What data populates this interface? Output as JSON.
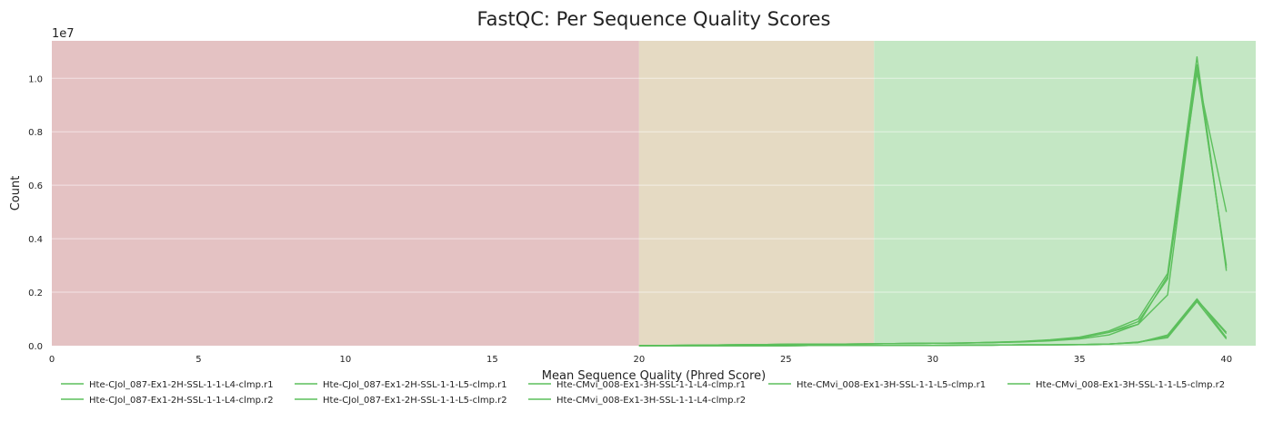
{
  "chart_data": {
    "type": "line",
    "title": "FastQC: Per Sequence Quality Scores",
    "xlabel": "Mean Sequence Quality (Phred Score)",
    "ylabel": "Count",
    "y_offset_label": "1e7",
    "xlim": [
      0,
      41
    ],
    "ylim": [
      0,
      1.14
    ],
    "x_ticks": [
      0,
      5,
      10,
      15,
      20,
      25,
      30,
      35,
      40
    ],
    "y_ticks": [
      0.0,
      0.2,
      0.4,
      0.6,
      0.8,
      1.0
    ],
    "y_tick_labels": [
      "0.0",
      "0.2",
      "0.4",
      "0.6",
      "0.8",
      "1.0"
    ],
    "grid": "y",
    "legend_position": "bottom",
    "quality_bands": [
      {
        "from": 0,
        "to": 20,
        "color": "#e4c2c3"
      },
      {
        "from": 20,
        "to": 28,
        "color": "#e5dac3"
      },
      {
        "from": 28,
        "to": 41,
        "color": "#c4e7c4"
      }
    ],
    "series_color": "#5cbf5c",
    "x": [
      20,
      21,
      22,
      23,
      24,
      25,
      26,
      27,
      28,
      29,
      30,
      31,
      32,
      33,
      34,
      35,
      36,
      37,
      38,
      39,
      40
    ],
    "series": [
      {
        "name": "Hte-CJol_087-Ex1-2H-SSL-1-1-L4-clmp.r1",
        "values": [
          0.0,
          0.001,
          0.002,
          0.003,
          0.004,
          0.005,
          0.006,
          0.006,
          0.007,
          0.008,
          0.009,
          0.01,
          0.012,
          0.014,
          0.018,
          0.025,
          0.04,
          0.08,
          0.26,
          1.05,
          0.29
        ]
      },
      {
        "name": "Hte-CJol_087-Ex1-2H-SSL-1-1-L4-clmp.r2",
        "values": [
          0.0,
          0.001,
          0.002,
          0.003,
          0.004,
          0.005,
          0.006,
          0.006,
          0.007,
          0.008,
          0.009,
          0.01,
          0.012,
          0.015,
          0.02,
          0.028,
          0.05,
          0.09,
          0.25,
          1.02,
          0.5
        ]
      },
      {
        "name": "Hte-CJol_087-Ex1-2H-SSL-1-1-L5-clmp.r1",
        "values": [
          0.0,
          0.001,
          0.002,
          0.003,
          0.004,
          0.005,
          0.006,
          0.006,
          0.007,
          0.008,
          0.009,
          0.01,
          0.013,
          0.016,
          0.022,
          0.032,
          0.055,
          0.1,
          0.27,
          1.08,
          0.28
        ]
      },
      {
        "name": "Hte-CJol_087-Ex1-2H-SSL-1-1-L5-clmp.r2",
        "values": [
          0.0,
          0.001,
          0.002,
          0.003,
          0.004,
          0.005,
          0.006,
          0.006,
          0.007,
          0.008,
          0.009,
          0.01,
          0.012,
          0.015,
          0.02,
          0.03,
          0.05,
          0.08,
          0.19,
          1.04,
          0.3
        ]
      },
      {
        "name": "Hte-CMvi_008-Ex1-3H-SSL-1-1-L4-clmp.r1",
        "values": [
          0.0,
          0.0,
          0.0,
          0.0,
          0.0,
          0.0,
          0.001,
          0.001,
          0.001,
          0.001,
          0.001,
          0.002,
          0.002,
          0.003,
          0.003,
          0.004,
          0.006,
          0.012,
          0.04,
          0.175,
          0.03
        ]
      },
      {
        "name": "Hte-CMvi_008-Ex1-3H-SSL-1-1-L4-clmp.r2",
        "values": [
          0.0,
          0.0,
          0.0,
          0.0,
          0.0,
          0.0,
          0.001,
          0.001,
          0.001,
          0.001,
          0.001,
          0.002,
          0.002,
          0.003,
          0.003,
          0.004,
          0.006,
          0.012,
          0.035,
          0.17,
          0.045
        ]
      },
      {
        "name": "Hte-CMvi_008-Ex1-3H-SSL-1-1-L5-clmp.r1",
        "values": [
          0.0,
          0.0,
          0.0,
          0.0,
          0.0,
          0.0,
          0.001,
          0.001,
          0.001,
          0.001,
          0.001,
          0.002,
          0.002,
          0.003,
          0.003,
          0.004,
          0.006,
          0.013,
          0.038,
          0.172,
          0.05
        ]
      },
      {
        "name": "Hte-CMvi_008-Ex1-3H-SSL-1-1-L5-clmp.r2",
        "values": [
          0.0,
          0.0,
          0.0,
          0.0,
          0.0,
          0.0,
          0.001,
          0.001,
          0.001,
          0.001,
          0.001,
          0.002,
          0.002,
          0.003,
          0.003,
          0.004,
          0.006,
          0.014,
          0.03,
          0.165,
          0.025
        ]
      }
    ]
  }
}
